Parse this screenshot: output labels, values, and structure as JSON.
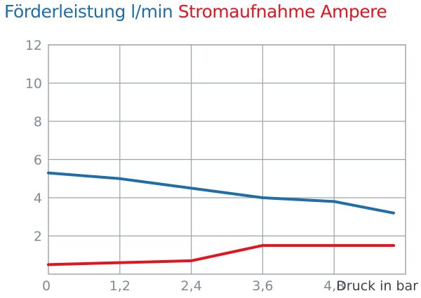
{
  "chart_data": {
    "type": "line",
    "title_parts": [
      {
        "text": "Förderleistung l/min",
        "color": "#1f6ea8"
      },
      {
        "text": "Stromaufnahme Ampere",
        "color": "#e1141f"
      }
    ],
    "xlabel": "Druck in bar",
    "xlim": [
      0,
      6
    ],
    "ylim": [
      0,
      12
    ],
    "x_ticks": [
      "0",
      "1,2",
      "2,4",
      "3,6",
      "4,8"
    ],
    "x_tick_values": [
      0,
      1.2,
      2.4,
      3.6,
      4.8
    ],
    "y_ticks": [
      "2",
      "4",
      "6",
      "8",
      "10",
      "12"
    ],
    "y_tick_values": [
      2,
      4,
      6,
      8,
      10,
      12
    ],
    "grid": true,
    "series": [
      {
        "color": "#1f6ea8",
        "x": [
          0,
          1.2,
          2.4,
          3.6,
          4.8,
          5.8
        ],
        "y": [
          5.3,
          5.0,
          4.5,
          4.0,
          3.8,
          3.2
        ]
      },
      {
        "color": "#e1141f",
        "x": [
          0,
          1.2,
          2.4,
          3.6,
          4.8,
          5.8
        ],
        "y": [
          0.5,
          0.6,
          0.7,
          1.5,
          1.5,
          1.5
        ]
      }
    ]
  }
}
